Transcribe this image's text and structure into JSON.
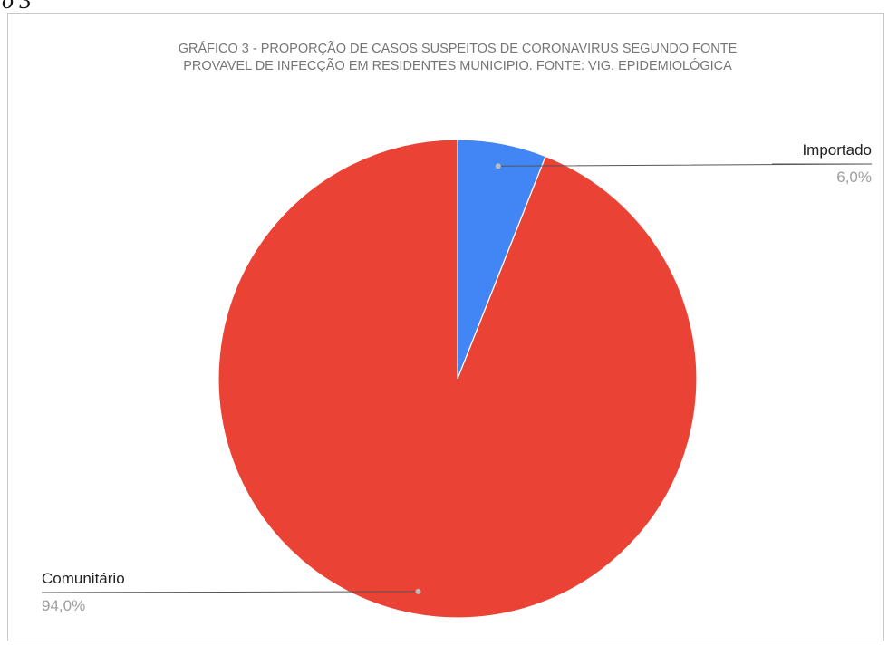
{
  "header_fragment": "o 3",
  "chart_data": {
    "type": "pie",
    "title_lines": [
      "GRÁFICO 3 - PROPORÇÃO DE CASOS SUSPEITOS DE CORONAVIRUS SEGUNDO FONTE",
      "PROVAVEL DE INFECÇÃO EM RESIDENTES MUNICIPIO. FONTE: VIG. EPIDEMIOLÓGICA"
    ],
    "slices": [
      {
        "name": "Importado",
        "value": 6.0,
        "label": "6,0%",
        "color": "#4285f4"
      },
      {
        "name": "Comunitário",
        "value": 94.0,
        "label": "94,0%",
        "color": "#ea4335"
      }
    ],
    "start_angle": "top",
    "direction": "clockwise",
    "legend": "none"
  }
}
